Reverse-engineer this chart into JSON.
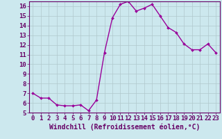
{
  "x": [
    0,
    1,
    2,
    3,
    4,
    5,
    6,
    7,
    8,
    9,
    10,
    11,
    12,
    13,
    14,
    15,
    16,
    17,
    18,
    19,
    20,
    21,
    22,
    23
  ],
  "y": [
    7.0,
    6.5,
    6.5,
    5.8,
    5.7,
    5.7,
    5.8,
    5.2,
    6.3,
    11.2,
    14.8,
    16.2,
    16.5,
    15.5,
    15.8,
    16.2,
    15.0,
    13.8,
    13.3,
    12.1,
    11.5,
    11.5,
    12.1,
    11.2
  ],
  "line_color": "#990099",
  "marker": "D",
  "marker_size": 2.0,
  "bg_color": "#cce8ee",
  "grid_color": "#b0c8cc",
  "xlabel": "Windchill (Refroidissement éolien,°C)",
  "ylabel": "",
  "ylim": [
    5,
    16.5
  ],
  "xlim": [
    -0.5,
    23.5
  ],
  "yticks": [
    5,
    6,
    7,
    8,
    9,
    10,
    11,
    12,
    13,
    14,
    15,
    16
  ],
  "xticks": [
    0,
    1,
    2,
    3,
    4,
    5,
    6,
    7,
    8,
    9,
    10,
    11,
    12,
    13,
    14,
    15,
    16,
    17,
    18,
    19,
    20,
    21,
    22,
    23
  ],
  "tick_label_color": "#660066",
  "xlabel_color": "#660066",
  "xlabel_fontsize": 7.0,
  "tick_fontsize": 6.5,
  "linewidth": 1.0,
  "spine_color": "#660066"
}
